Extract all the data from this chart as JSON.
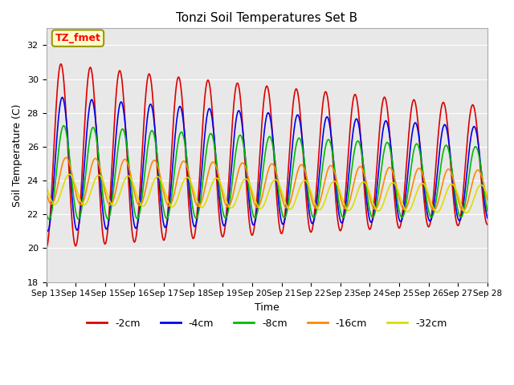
{
  "title": "Tonzi Soil Temperatures Set B",
  "xlabel": "Time",
  "ylabel": "Soil Temperature (C)",
  "ylim": [
    18,
    33
  ],
  "yticks": [
    18,
    20,
    22,
    24,
    26,
    28,
    30,
    32
  ],
  "xtick_labels": [
    "Sep 13",
    "Sep 14",
    "Sep 15",
    "Sep 16",
    "Sep 17",
    "Sep 18",
    "Sep 19",
    "Sep 20",
    "Sep 21",
    "Sep 22",
    "Sep 23",
    "Sep 24",
    "Sep 25",
    "Sep 26",
    "Sep 27",
    "Sep 28"
  ],
  "annotation_text": "TZ_fmet",
  "annotation_box_color": "#ffffcc",
  "annotation_box_edgecolor": "#999900",
  "lines": {
    "-2cm": {
      "color": "#dd0000",
      "amplitude": 5.5,
      "mean": 25.5,
      "phase": 0.0,
      "amp_decay": 0.03,
      "mean_decay": -0.04
    },
    "-4cm": {
      "color": "#0000ee",
      "amplitude": 4.0,
      "mean": 25.0,
      "phase": 0.3,
      "amp_decay": 0.025,
      "mean_decay": -0.04
    },
    "-8cm": {
      "color": "#00bb00",
      "amplitude": 2.8,
      "mean": 24.5,
      "phase": 0.6,
      "amp_decay": 0.02,
      "mean_decay": -0.04
    },
    "-16cm": {
      "color": "#ff8800",
      "amplitude": 1.4,
      "mean": 24.0,
      "phase": 1.1,
      "amp_decay": 0.01,
      "mean_decay": -0.04
    },
    "-32cm": {
      "color": "#dddd00",
      "amplitude": 0.9,
      "mean": 23.5,
      "phase": 1.8,
      "amp_decay": 0.005,
      "mean_decay": -0.04
    }
  },
  "legend_order": [
    "-2cm",
    "-4cm",
    "-8cm",
    "-16cm",
    "-32cm"
  ],
  "n_days": 15,
  "pts_per_day": 48
}
